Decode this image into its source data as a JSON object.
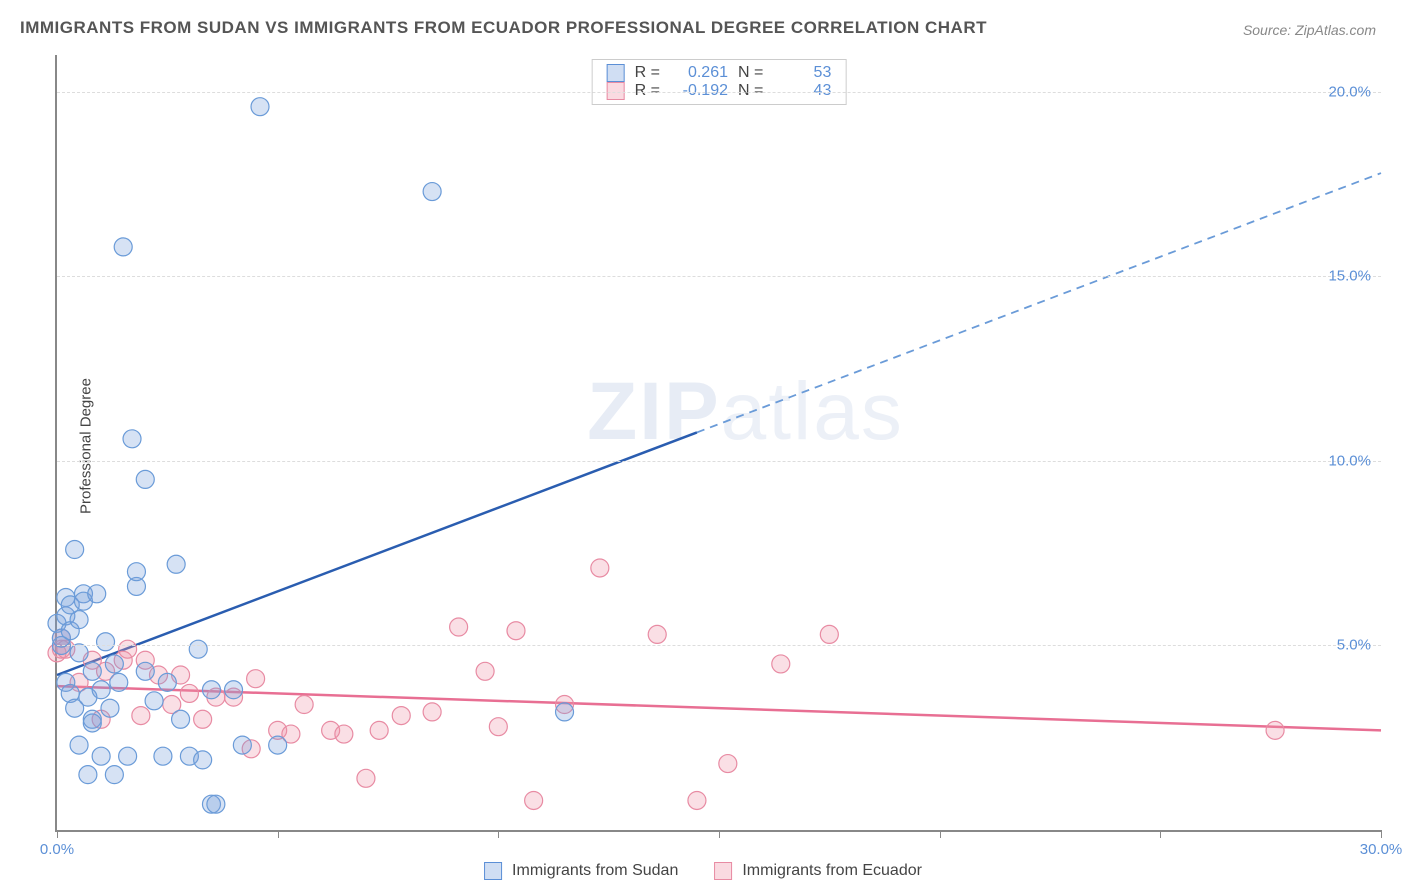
{
  "title": "IMMIGRANTS FROM SUDAN VS IMMIGRANTS FROM ECUADOR PROFESSIONAL DEGREE CORRELATION CHART",
  "source": "Source: ZipAtlas.com",
  "watermark_a": "ZIP",
  "watermark_b": "atlas",
  "y_axis_label": "Professional Degree",
  "chart": {
    "type": "scatter",
    "xlim": [
      0,
      30
    ],
    "ylim": [
      0,
      21
    ],
    "x_ticks": [
      0,
      5,
      10,
      15,
      20,
      25,
      30
    ],
    "x_tick_labels": {
      "0": "0.0%",
      "30": "30.0%"
    },
    "y_ticks": [
      5,
      10,
      15,
      20
    ],
    "y_tick_labels": {
      "5": "5.0%",
      "10": "10.0%",
      "15": "15.0%",
      "20": "20.0%"
    },
    "grid_color": "#dddddd",
    "axis_color": "#888888",
    "background_color": "#ffffff",
    "marker_radius": 9,
    "series": [
      {
        "name": "Immigrants from Sudan",
        "color_fill": "rgba(120,160,220,0.30)",
        "color_stroke": "#6a9bd8",
        "r_label": "R =",
        "r_value": "0.261",
        "n_label": "N =",
        "n_value": "53",
        "trend": {
          "y_at_x0": 4.2,
          "y_at_xmax": 17.8,
          "solid_until_x": 14.5,
          "color_solid": "#2a5db0",
          "color_dash": "#6a9bd8"
        },
        "points": [
          [
            0.0,
            5.6
          ],
          [
            0.1,
            5.0
          ],
          [
            0.1,
            5.2
          ],
          [
            0.2,
            6.3
          ],
          [
            0.2,
            5.8
          ],
          [
            0.2,
            4.0
          ],
          [
            0.3,
            5.4
          ],
          [
            0.3,
            6.1
          ],
          [
            0.3,
            3.7
          ],
          [
            0.4,
            7.6
          ],
          [
            0.4,
            3.3
          ],
          [
            0.5,
            2.3
          ],
          [
            0.5,
            4.8
          ],
          [
            0.6,
            6.4
          ],
          [
            0.6,
            6.2
          ],
          [
            0.7,
            3.6
          ],
          [
            0.7,
            1.5
          ],
          [
            0.8,
            4.3
          ],
          [
            0.8,
            3.0
          ],
          [
            0.8,
            2.9
          ],
          [
            0.9,
            6.4
          ],
          [
            1.0,
            2.0
          ],
          [
            1.0,
            3.8
          ],
          [
            1.1,
            5.1
          ],
          [
            1.2,
            3.3
          ],
          [
            1.3,
            1.5
          ],
          [
            1.4,
            4.0
          ],
          [
            1.5,
            15.8
          ],
          [
            1.6,
            2.0
          ],
          [
            1.7,
            10.6
          ],
          [
            1.8,
            6.6
          ],
          [
            1.8,
            7.0
          ],
          [
            2.0,
            9.5
          ],
          [
            2.0,
            4.3
          ],
          [
            2.2,
            3.5
          ],
          [
            2.4,
            2.0
          ],
          [
            2.5,
            4.0
          ],
          [
            2.7,
            7.2
          ],
          [
            2.8,
            3.0
          ],
          [
            3.0,
            2.0
          ],
          [
            3.2,
            4.9
          ],
          [
            3.3,
            1.9
          ],
          [
            3.5,
            3.8
          ],
          [
            3.5,
            0.7
          ],
          [
            3.6,
            0.7
          ],
          [
            4.0,
            3.8
          ],
          [
            4.2,
            2.3
          ],
          [
            4.6,
            19.6
          ],
          [
            5.0,
            2.3
          ],
          [
            8.5,
            17.3
          ],
          [
            11.5,
            3.2
          ],
          [
            1.3,
            4.5
          ],
          [
            0.5,
            5.7
          ]
        ]
      },
      {
        "name": "Immigrants from Ecuador",
        "color_fill": "rgba(240,150,170,0.30)",
        "color_stroke": "#e88ba3",
        "r_label": "R =",
        "r_value": "-0.192",
        "n_label": "N =",
        "n_value": "43",
        "trend": {
          "y_at_x0": 3.9,
          "y_at_xmax": 2.7,
          "solid_until_x": 30,
          "color_solid": "#e86f93"
        },
        "points": [
          [
            0.0,
            4.8
          ],
          [
            0.1,
            5.2
          ],
          [
            0.1,
            4.9
          ],
          [
            0.2,
            4.9
          ],
          [
            0.5,
            4.0
          ],
          [
            0.8,
            4.6
          ],
          [
            1.0,
            3.0
          ],
          [
            1.1,
            4.3
          ],
          [
            1.5,
            4.6
          ],
          [
            1.6,
            4.9
          ],
          [
            1.9,
            3.1
          ],
          [
            2.0,
            4.6
          ],
          [
            2.3,
            4.2
          ],
          [
            2.6,
            3.4
          ],
          [
            2.8,
            4.2
          ],
          [
            3.0,
            3.7
          ],
          [
            3.3,
            3.0
          ],
          [
            3.6,
            3.6
          ],
          [
            4.0,
            3.6
          ],
          [
            4.4,
            2.2
          ],
          [
            4.5,
            4.1
          ],
          [
            5.0,
            2.7
          ],
          [
            5.3,
            2.6
          ],
          [
            5.6,
            3.4
          ],
          [
            6.2,
            2.7
          ],
          [
            6.5,
            2.6
          ],
          [
            7.0,
            1.4
          ],
          [
            7.3,
            2.7
          ],
          [
            7.8,
            3.1
          ],
          [
            8.5,
            3.2
          ],
          [
            9.1,
            5.5
          ],
          [
            9.7,
            4.3
          ],
          [
            10.0,
            2.8
          ],
          [
            10.4,
            5.4
          ],
          [
            10.8,
            0.8
          ],
          [
            11.5,
            3.4
          ],
          [
            12.3,
            7.1
          ],
          [
            13.6,
            5.3
          ],
          [
            14.5,
            0.8
          ],
          [
            15.2,
            1.8
          ],
          [
            16.4,
            4.5
          ],
          [
            17.5,
            5.3
          ],
          [
            27.6,
            2.7
          ]
        ]
      }
    ]
  },
  "legend": {
    "item1": "Immigrants from Sudan",
    "item2": "Immigrants from Ecuador"
  }
}
